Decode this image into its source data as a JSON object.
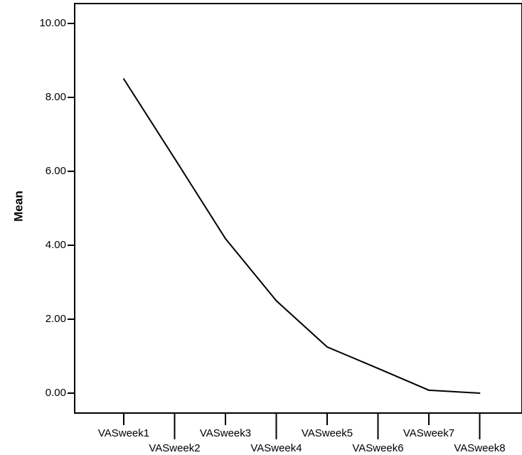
{
  "chart_data": {
    "type": "line",
    "title": "",
    "xlabel": "",
    "ylabel": "Mean",
    "categories": [
      "VASweek1",
      "VASweek2",
      "VASweek3",
      "VASweek4",
      "VASweek5",
      "VASweek6",
      "VASweek7",
      "VASweek8"
    ],
    "values": [
      8.5,
      6.35,
      4.18,
      2.5,
      1.25,
      0.67,
      0.08,
      0.0
    ],
    "ylim": [
      0,
      10.5
    ],
    "yticks": [
      "0.00",
      "2.00",
      "4.00",
      "6.00",
      "8.00",
      "10.00"
    ],
    "grid": false,
    "legend": "none",
    "line_color": "#000000"
  }
}
